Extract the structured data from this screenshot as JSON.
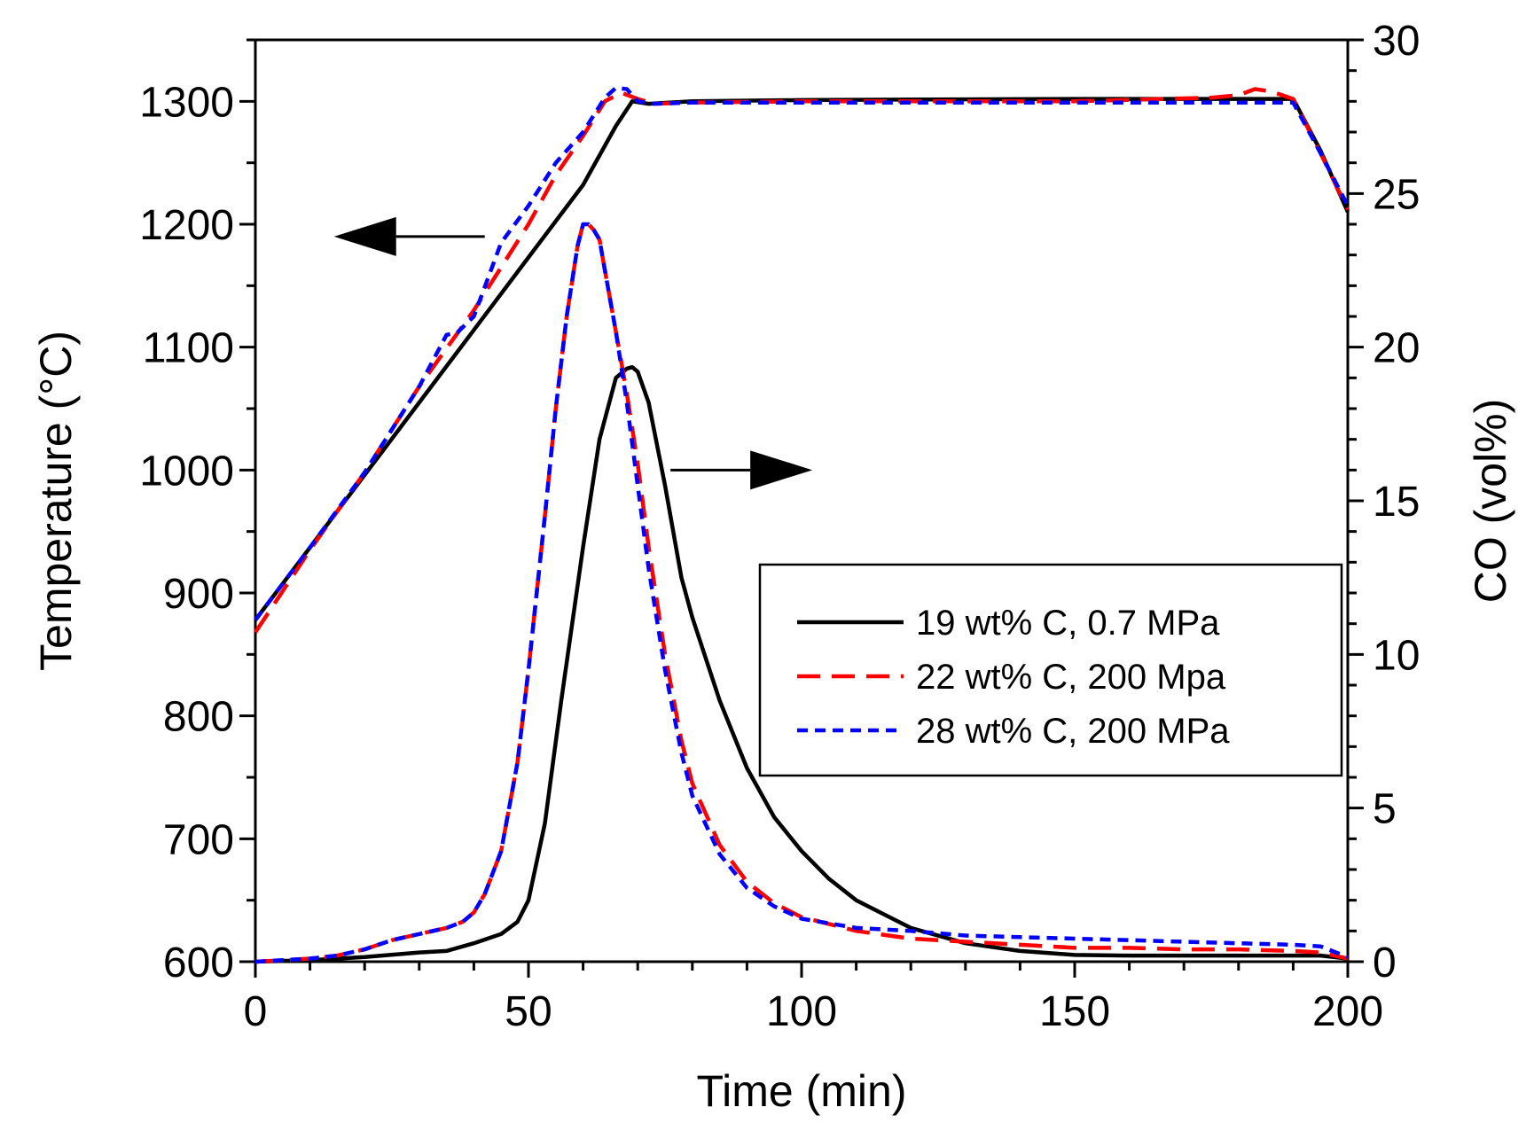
{
  "chart_data": {
    "type": "line",
    "title": "",
    "xlabel": "Time (min)",
    "ylabel_left": "Temperature (°C)",
    "ylabel_right": "CO (vol%)",
    "xlim": [
      0,
      200
    ],
    "ylim_left": [
      600,
      1350
    ],
    "ylim_right": [
      0,
      30
    ],
    "x_ticks": [
      0,
      50,
      100,
      150,
      200
    ],
    "y_left_ticks": [
      600,
      700,
      800,
      900,
      1000,
      1100,
      1200,
      1300
    ],
    "y_right_ticks": [
      0,
      5,
      10,
      15,
      20,
      25,
      30
    ],
    "x_tick_labels": [
      "0",
      "50",
      "100",
      "150",
      "200"
    ],
    "y_left_tick_labels": [
      "600",
      "700",
      "800",
      "900",
      "1000",
      "1100",
      "1200",
      "1300"
    ],
    "y_right_tick_labels": [
      "0",
      "5",
      "10",
      "15",
      "20",
      "25",
      "30"
    ],
    "grid": false,
    "legend_position": "middle-right",
    "series": [
      {
        "name": "19 wt% C, 0.7 MPa",
        "color": "#000000",
        "dash": "solid",
        "temperature": {
          "x": [
            0,
            10,
            20,
            30,
            40,
            50,
            60,
            66,
            69,
            72,
            80,
            100,
            150,
            180,
            190,
            195,
            200
          ],
          "y": [
            878,
            937,
            996,
            1055,
            1114,
            1173,
            1232,
            1280,
            1300,
            1298,
            1300,
            1301,
            1302,
            1302,
            1302,
            1260,
            1210
          ]
        },
        "co": {
          "x": [
            0,
            10,
            20,
            30,
            35,
            40,
            45,
            48,
            50,
            53,
            56,
            60,
            63,
            66,
            68,
            69,
            70,
            72,
            75,
            78,
            80,
            85,
            90,
            95,
            100,
            105,
            110,
            120,
            130,
            140,
            150,
            160,
            170,
            180,
            190,
            195,
            200
          ],
          "y": [
            0,
            0.05,
            0.15,
            0.3,
            0.35,
            0.6,
            0.9,
            1.3,
            2.0,
            4.5,
            8.5,
            13.5,
            17,
            19,
            19.3,
            19.35,
            19.2,
            18.2,
            15.5,
            12.5,
            11.2,
            8.5,
            6.3,
            4.7,
            3.6,
            2.7,
            2.0,
            1.1,
            0.6,
            0.35,
            0.22,
            0.2,
            0.2,
            0.2,
            0.2,
            0.2,
            0.1
          ]
        }
      },
      {
        "name": "22 wt% C, 200 Mpa",
        "color": "#ff0000",
        "dash": "long-dash",
        "temperature": {
          "x": [
            0,
            10,
            20,
            30,
            40,
            50,
            55,
            60,
            64,
            67,
            70,
            73,
            80,
            100,
            150,
            175,
            180,
            183,
            186,
            190,
            195,
            200
          ],
          "y": [
            868,
            935,
            998,
            1068,
            1130,
            1200,
            1240,
            1272,
            1300,
            1307,
            1302,
            1298,
            1299,
            1300,
            1300,
            1303,
            1305,
            1310,
            1308,
            1302,
            1258,
            1212
          ]
        },
        "co": {
          "x": [
            0,
            5,
            10,
            15,
            20,
            25,
            30,
            35,
            38,
            40,
            42,
            45,
            48,
            50,
            53,
            55,
            57,
            59,
            60,
            61,
            62,
            63,
            64,
            66,
            68,
            70,
            72,
            75,
            78,
            80,
            85,
            90,
            95,
            100,
            110,
            120,
            130,
            140,
            150,
            160,
            170,
            180,
            190,
            195,
            200
          ],
          "y": [
            0,
            0.05,
            0.1,
            0.2,
            0.4,
            0.7,
            0.9,
            1.1,
            1.3,
            1.6,
            2.2,
            3.6,
            6.5,
            9.5,
            14.5,
            18,
            21,
            23.3,
            24,
            24,
            23.8,
            23.5,
            22.5,
            20.5,
            18.5,
            16.2,
            13.5,
            10,
            7.2,
            5.8,
            3.8,
            2.6,
            1.9,
            1.45,
            1.0,
            0.75,
            0.65,
            0.55,
            0.45,
            0.45,
            0.4,
            0.4,
            0.35,
            0.3,
            0.1
          ]
        }
      },
      {
        "name": "28 wt% C, 200 MPa",
        "color": "#0000ff",
        "dash": "short-dash",
        "temperature": {
          "x": [
            0,
            10,
            20,
            30,
            35,
            37,
            40,
            45,
            50,
            55,
            60,
            64,
            66,
            68,
            70,
            73,
            80,
            100,
            150,
            180,
            190,
            195,
            200
          ],
          "y": [
            878,
            937,
            998,
            1068,
            1110,
            1112,
            1125,
            1185,
            1215,
            1250,
            1275,
            1303,
            1311,
            1310,
            1300,
            1298,
            1299,
            1299,
            1299,
            1299,
            1299,
            1258,
            1215
          ]
        },
        "co": {
          "x": [
            0,
            5,
            10,
            15,
            20,
            25,
            30,
            35,
            38,
            40,
            42,
            45,
            48,
            50,
            53,
            55,
            57,
            59,
            60,
            61,
            62,
            63,
            64,
            66,
            68,
            70,
            72,
            75,
            78,
            80,
            85,
            90,
            95,
            100,
            110,
            120,
            130,
            140,
            150,
            160,
            170,
            180,
            190,
            195,
            200
          ],
          "y": [
            0,
            0.05,
            0.1,
            0.2,
            0.4,
            0.7,
            0.9,
            1.1,
            1.3,
            1.6,
            2.2,
            3.6,
            6.5,
            9.5,
            14.5,
            18,
            21,
            23.3,
            24,
            24,
            23.8,
            23.5,
            22.5,
            20.5,
            18.2,
            15.5,
            12.8,
            9.5,
            6.8,
            5.4,
            3.5,
            2.4,
            1.8,
            1.4,
            1.1,
            1.0,
            0.85,
            0.8,
            0.75,
            0.7,
            0.65,
            0.6,
            0.55,
            0.5,
            0.15
          ]
        }
      }
    ],
    "annotations": [
      {
        "type": "arrow",
        "direction": "left",
        "meaning": "temperature curves use left axis",
        "anchor_x": 42,
        "anchor_temp": 1190
      },
      {
        "type": "arrow",
        "direction": "right",
        "meaning": "CO curves use right axis",
        "anchor_x": 76,
        "anchor_co": 16
      }
    ]
  }
}
